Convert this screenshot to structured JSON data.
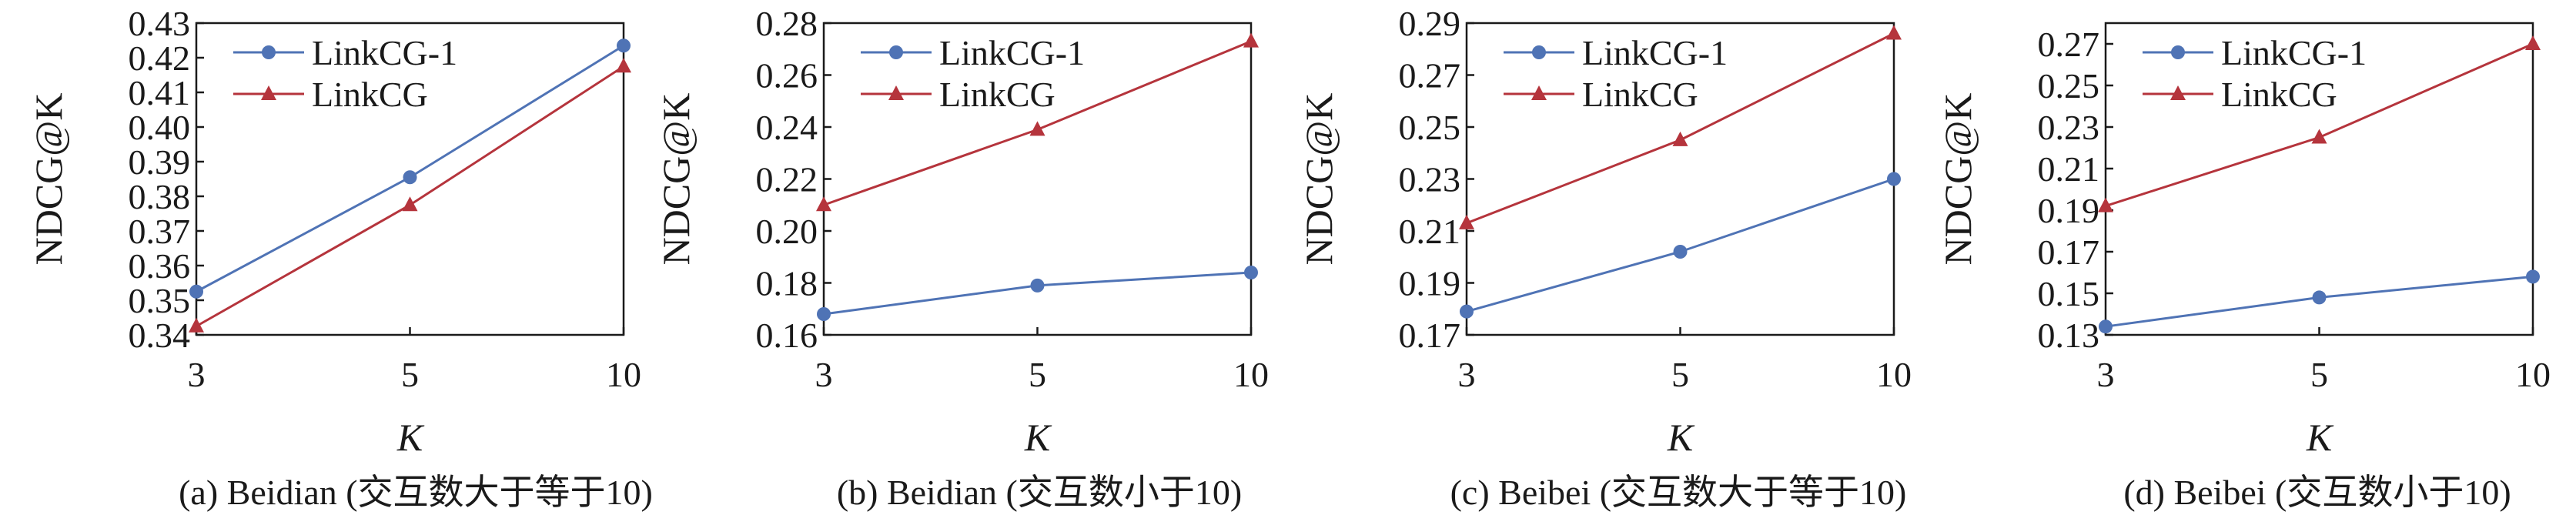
{
  "colors": {
    "linkcg1": "#4f73b5",
    "linkcg": "#b5343c",
    "axis": "#1a1a1a"
  },
  "chart_data": [
    {
      "type": "line",
      "caption": "(a)  Beidian (交互数大于等于10)",
      "xlabel": "K",
      "ylabel": "NDCG@K",
      "categories": [
        "3",
        "5",
        "10"
      ],
      "y_ticks": [
        "0.34",
        "0.35",
        "0.36",
        "0.37",
        "0.38",
        "0.39",
        "0.40",
        "0.41",
        "0.42",
        "0.43"
      ],
      "ylim": [
        0.34,
        0.43
      ],
      "legend_position": "top-left",
      "series": [
        {
          "name": "LinkCG-1",
          "marker": "circle",
          "color": "#4f73b5",
          "values": [
            0.3525,
            0.3855,
            0.4235
          ]
        },
        {
          "name": "LinkCG",
          "marker": "triangle",
          "color": "#b5343c",
          "values": [
            0.3425,
            0.3775,
            0.4175
          ]
        }
      ]
    },
    {
      "type": "line",
      "caption": "(b)  Beidian (交互数小于10)",
      "xlabel": "K",
      "ylabel": "NDCG@K",
      "categories": [
        "3",
        "5",
        "10"
      ],
      "y_ticks": [
        "0.16",
        "0.18",
        "0.20",
        "0.22",
        "0.24",
        "0.26",
        "0.28"
      ],
      "ylim": [
        0.16,
        0.28
      ],
      "legend_position": "top-left",
      "series": [
        {
          "name": "LinkCG-1",
          "marker": "circle",
          "color": "#4f73b5",
          "values": [
            0.168,
            0.179,
            0.184
          ]
        },
        {
          "name": "LinkCG",
          "marker": "triangle",
          "color": "#b5343c",
          "values": [
            0.21,
            0.239,
            0.273
          ]
        }
      ]
    },
    {
      "type": "line",
      "caption": "(c)  Beibei (交互数大于等于10)",
      "xlabel": "K",
      "ylabel": "NDCG@K",
      "categories": [
        "3",
        "5",
        "10"
      ],
      "y_ticks": [
        "0.17",
        "0.19",
        "0.21",
        "0.23",
        "0.25",
        "0.27",
        "0.29"
      ],
      "ylim": [
        0.17,
        0.29
      ],
      "legend_position": "top-left",
      "series": [
        {
          "name": "LinkCG-1",
          "marker": "circle",
          "color": "#4f73b5",
          "values": [
            0.179,
            0.202,
            0.23
          ]
        },
        {
          "name": "LinkCG",
          "marker": "triangle",
          "color": "#b5343c",
          "values": [
            0.213,
            0.245,
            0.286
          ]
        }
      ]
    },
    {
      "type": "line",
      "caption": "(d)  Beibei (交互数小于10)",
      "xlabel": "K",
      "ylabel": "NDCG@K",
      "categories": [
        "3",
        "5",
        "10"
      ],
      "y_ticks": [
        "0.13",
        "0.15",
        "0.17",
        "0.19",
        "0.21",
        "0.23",
        "0.25",
        "0.27"
      ],
      "ylim": [
        0.13,
        0.28
      ],
      "legend_position": "top-left",
      "series": [
        {
          "name": "LinkCG-1",
          "marker": "circle",
          "color": "#4f73b5",
          "values": [
            0.134,
            0.148,
            0.158
          ]
        },
        {
          "name": "LinkCG",
          "marker": "triangle",
          "color": "#b5343c",
          "values": [
            0.192,
            0.225,
            0.27
          ]
        }
      ]
    }
  ]
}
